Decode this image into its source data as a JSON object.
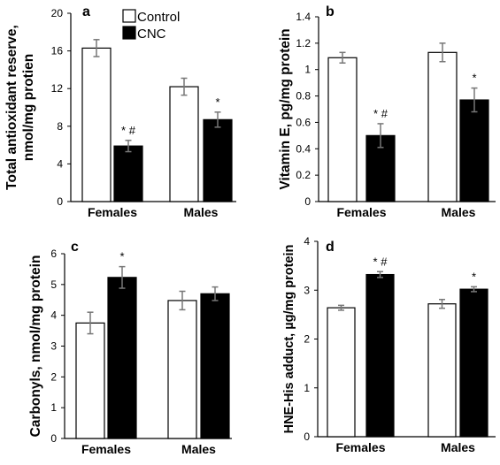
{
  "legend": {
    "items": [
      {
        "label": "Control",
        "color": "#ffffff"
      },
      {
        "label": "CNC",
        "color": "#000000"
      }
    ],
    "position": "top-center of panel a"
  },
  "chart_data": [
    {
      "panel": "a",
      "type": "bar",
      "ylabel_lines": [
        "Total antioxidant reserve,",
        "nmol/mg protien"
      ],
      "categories": [
        "Females",
        "Males"
      ],
      "ylim": [
        0,
        20
      ],
      "yticks": [
        "0",
        "4",
        "8",
        "12",
        "16",
        "20"
      ],
      "series": [
        {
          "name": "Control",
          "values": [
            16.3,
            12.2
          ],
          "errors": [
            0.9,
            0.9
          ]
        },
        {
          "name": "CNC",
          "values": [
            5.9,
            8.7
          ],
          "errors": [
            0.6,
            0.8
          ]
        }
      ],
      "annotations": [
        {
          "category": "Females",
          "series": "CNC",
          "text": "* #"
        },
        {
          "category": "Males",
          "series": "CNC",
          "text": "*"
        }
      ],
      "grid": false
    },
    {
      "panel": "b",
      "type": "bar",
      "ylabel_lines": [
        "Vitamin E, pg/mg protein"
      ],
      "categories": [
        "Females",
        "Males"
      ],
      "ylim": [
        0,
        1.4
      ],
      "yticks": [
        "0",
        "0.2",
        "0.4",
        "0.6",
        "0.8",
        "1",
        "1.2",
        "1.4"
      ],
      "series": [
        {
          "name": "Control",
          "values": [
            1.09,
            1.13
          ],
          "errors": [
            0.04,
            0.07
          ]
        },
        {
          "name": "CNC",
          "values": [
            0.5,
            0.77
          ],
          "errors": [
            0.09,
            0.09
          ]
        }
      ],
      "annotations": [
        {
          "category": "Females",
          "series": "CNC",
          "text": "* #"
        },
        {
          "category": "Males",
          "series": "CNC",
          "text": "*"
        }
      ],
      "grid": false
    },
    {
      "panel": "c",
      "type": "bar",
      "ylabel_lines": [
        "Carbonyls, nmol/mg protein"
      ],
      "categories": [
        "Females",
        "Males"
      ],
      "ylim": [
        0,
        6
      ],
      "yticks": [
        "0",
        "1",
        "2",
        "3",
        "4",
        "5",
        "6"
      ],
      "series": [
        {
          "name": "Control",
          "values": [
            3.75,
            4.48
          ],
          "errors": [
            0.35,
            0.3
          ]
        },
        {
          "name": "CNC",
          "values": [
            5.23,
            4.7
          ],
          "errors": [
            0.35,
            0.22
          ]
        }
      ],
      "annotations": [
        {
          "category": "Females",
          "series": "CNC",
          "text": "*"
        }
      ],
      "grid": false
    },
    {
      "panel": "d",
      "type": "bar",
      "ylabel_lines": [
        "HNE-His adduct, µg/mg protein"
      ],
      "categories": [
        "Females",
        "Males"
      ],
      "ylim": [
        0,
        4
      ],
      "yticks": [
        "0",
        "1",
        "2",
        "3",
        "4"
      ],
      "series": [
        {
          "name": "Control",
          "values": [
            2.64,
            2.72
          ],
          "errors": [
            0.05,
            0.09
          ]
        },
        {
          "name": "CNC",
          "values": [
            3.32,
            3.02
          ],
          "errors": [
            0.06,
            0.05
          ]
        }
      ],
      "annotations": [
        {
          "category": "Females",
          "series": "CNC",
          "text": "* #"
        },
        {
          "category": "Males",
          "series": "CNC",
          "text": "*"
        }
      ],
      "grid": false
    }
  ]
}
